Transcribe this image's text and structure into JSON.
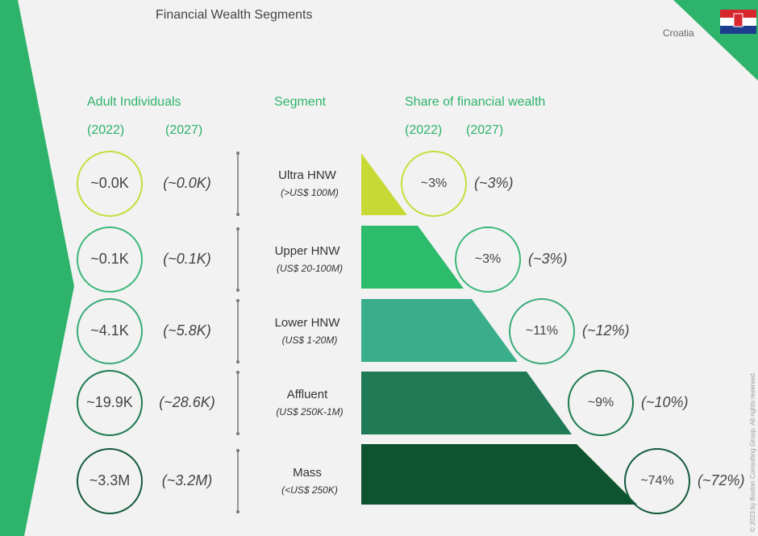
{
  "header": {
    "title": "Financial Wealth Segments",
    "country": "Croatia"
  },
  "columns": {
    "adults": "Adult Individuals",
    "adults_years": [
      "(2022)",
      "(2027)"
    ],
    "segment": "Segment",
    "share": "Share of financial wealth",
    "share_years": [
      "(2022)",
      "(2027)"
    ]
  },
  "rows": [
    {
      "segment": "Ultra HNW",
      "range": "(>US$ 100M)",
      "adults_2022": "~0.0K",
      "adults_2027": "(~0.0K)",
      "share_2022": "~3%",
      "share_2027": "(~3%)"
    },
    {
      "segment": "Upper HNW",
      "range": "(US$ 20-100M)",
      "adults_2022": "~0.1K",
      "adults_2027": "(~0.1K)",
      "share_2022": "~3%",
      "share_2027": "(~3%)"
    },
    {
      "segment": "Lower HNW",
      "range": "(US$ 1-20M)",
      "adults_2022": "~4.1K",
      "adults_2027": "(~5.8K)",
      "share_2022": "~11%",
      "share_2027": "(~12%)"
    },
    {
      "segment": "Affluent",
      "range": "(US$ 250K-1M)",
      "adults_2022": "~19.9K",
      "adults_2027": "(~28.6K)",
      "share_2022": "~9%",
      "share_2027": "(~10%)"
    },
    {
      "segment": "Mass",
      "range": "(<US$ 250K)",
      "adults_2022": "~3.3M",
      "adults_2027": "(~3.2M)",
      "share_2022": "~74%",
      "share_2027": "(~72%)"
    }
  ],
  "footer": {
    "copyright": "© 2023 by Boston Consulting Group. All rights reserved."
  }
}
